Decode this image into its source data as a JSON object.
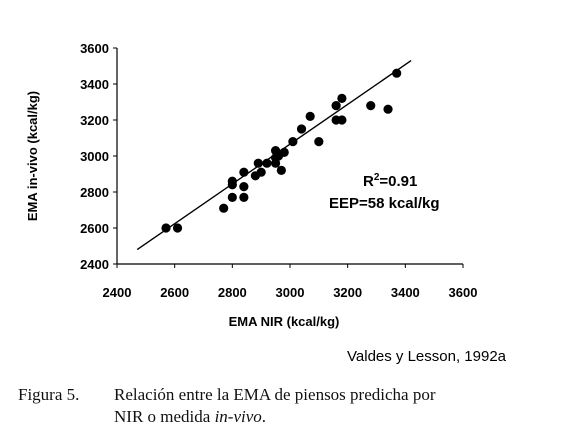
{
  "chart_data": {
    "type": "scatter",
    "xlabel": "EMA NIR (kcal/kg)",
    "ylabel": "EMA in-vivo (kcal/kg)",
    "xlim": [
      2400,
      3600
    ],
    "ylim": [
      2400,
      3600
    ],
    "x_ticks": [
      "2400",
      "2600",
      "2800",
      "3000",
      "3200",
      "3400",
      "3600"
    ],
    "y_ticks": [
      "2400",
      "2600",
      "2800",
      "3000",
      "3200",
      "3400",
      "3600"
    ],
    "grid": false,
    "legend": "none",
    "points": [
      {
        "x": 2570,
        "y": 2600
      },
      {
        "x": 2610,
        "y": 2600
      },
      {
        "x": 2770,
        "y": 2710
      },
      {
        "x": 2800,
        "y": 2770
      },
      {
        "x": 2840,
        "y": 2770
      },
      {
        "x": 2800,
        "y": 2840
      },
      {
        "x": 2800,
        "y": 2860
      },
      {
        "x": 2840,
        "y": 2830
      },
      {
        "x": 2840,
        "y": 2910
      },
      {
        "x": 2880,
        "y": 2890
      },
      {
        "x": 2890,
        "y": 2960
      },
      {
        "x": 2920,
        "y": 2960
      },
      {
        "x": 2900,
        "y": 2910
      },
      {
        "x": 2950,
        "y": 2960
      },
      {
        "x": 2950,
        "y": 2990
      },
      {
        "x": 2960,
        "y": 3000
      },
      {
        "x": 2950,
        "y": 3030
      },
      {
        "x": 2970,
        "y": 2920
      },
      {
        "x": 2980,
        "y": 3020
      },
      {
        "x": 3010,
        "y": 3080
      },
      {
        "x": 3040,
        "y": 3150
      },
      {
        "x": 3070,
        "y": 3220
      },
      {
        "x": 3100,
        "y": 3080
      },
      {
        "x": 3160,
        "y": 3200
      },
      {
        "x": 3160,
        "y": 3280
      },
      {
        "x": 3180,
        "y": 3320
      },
      {
        "x": 3180,
        "y": 3200
      },
      {
        "x": 3280,
        "y": 3280
      },
      {
        "x": 3340,
        "y": 3260
      },
      {
        "x": 3370,
        "y": 3460
      }
    ],
    "fit_line": {
      "x1": 2470,
      "y1": 2480,
      "x2": 3420,
      "y2": 3530
    },
    "annotations": {
      "r2_prefix": "R",
      "r2_sup": "2",
      "r2_value": "=0.91",
      "eep": "EEP=58 kcal/kg"
    },
    "colors": {
      "points": "#000000",
      "line": "#000000"
    }
  },
  "source": "Valdes y Lesson, 1992a",
  "caption": {
    "number": "Figura  5.",
    "line1": "Relación entre la EMA de piensos predicha por",
    "line2_start": "NIR o medida ",
    "line2_italic": "in-vivo",
    "line2_end": "."
  }
}
